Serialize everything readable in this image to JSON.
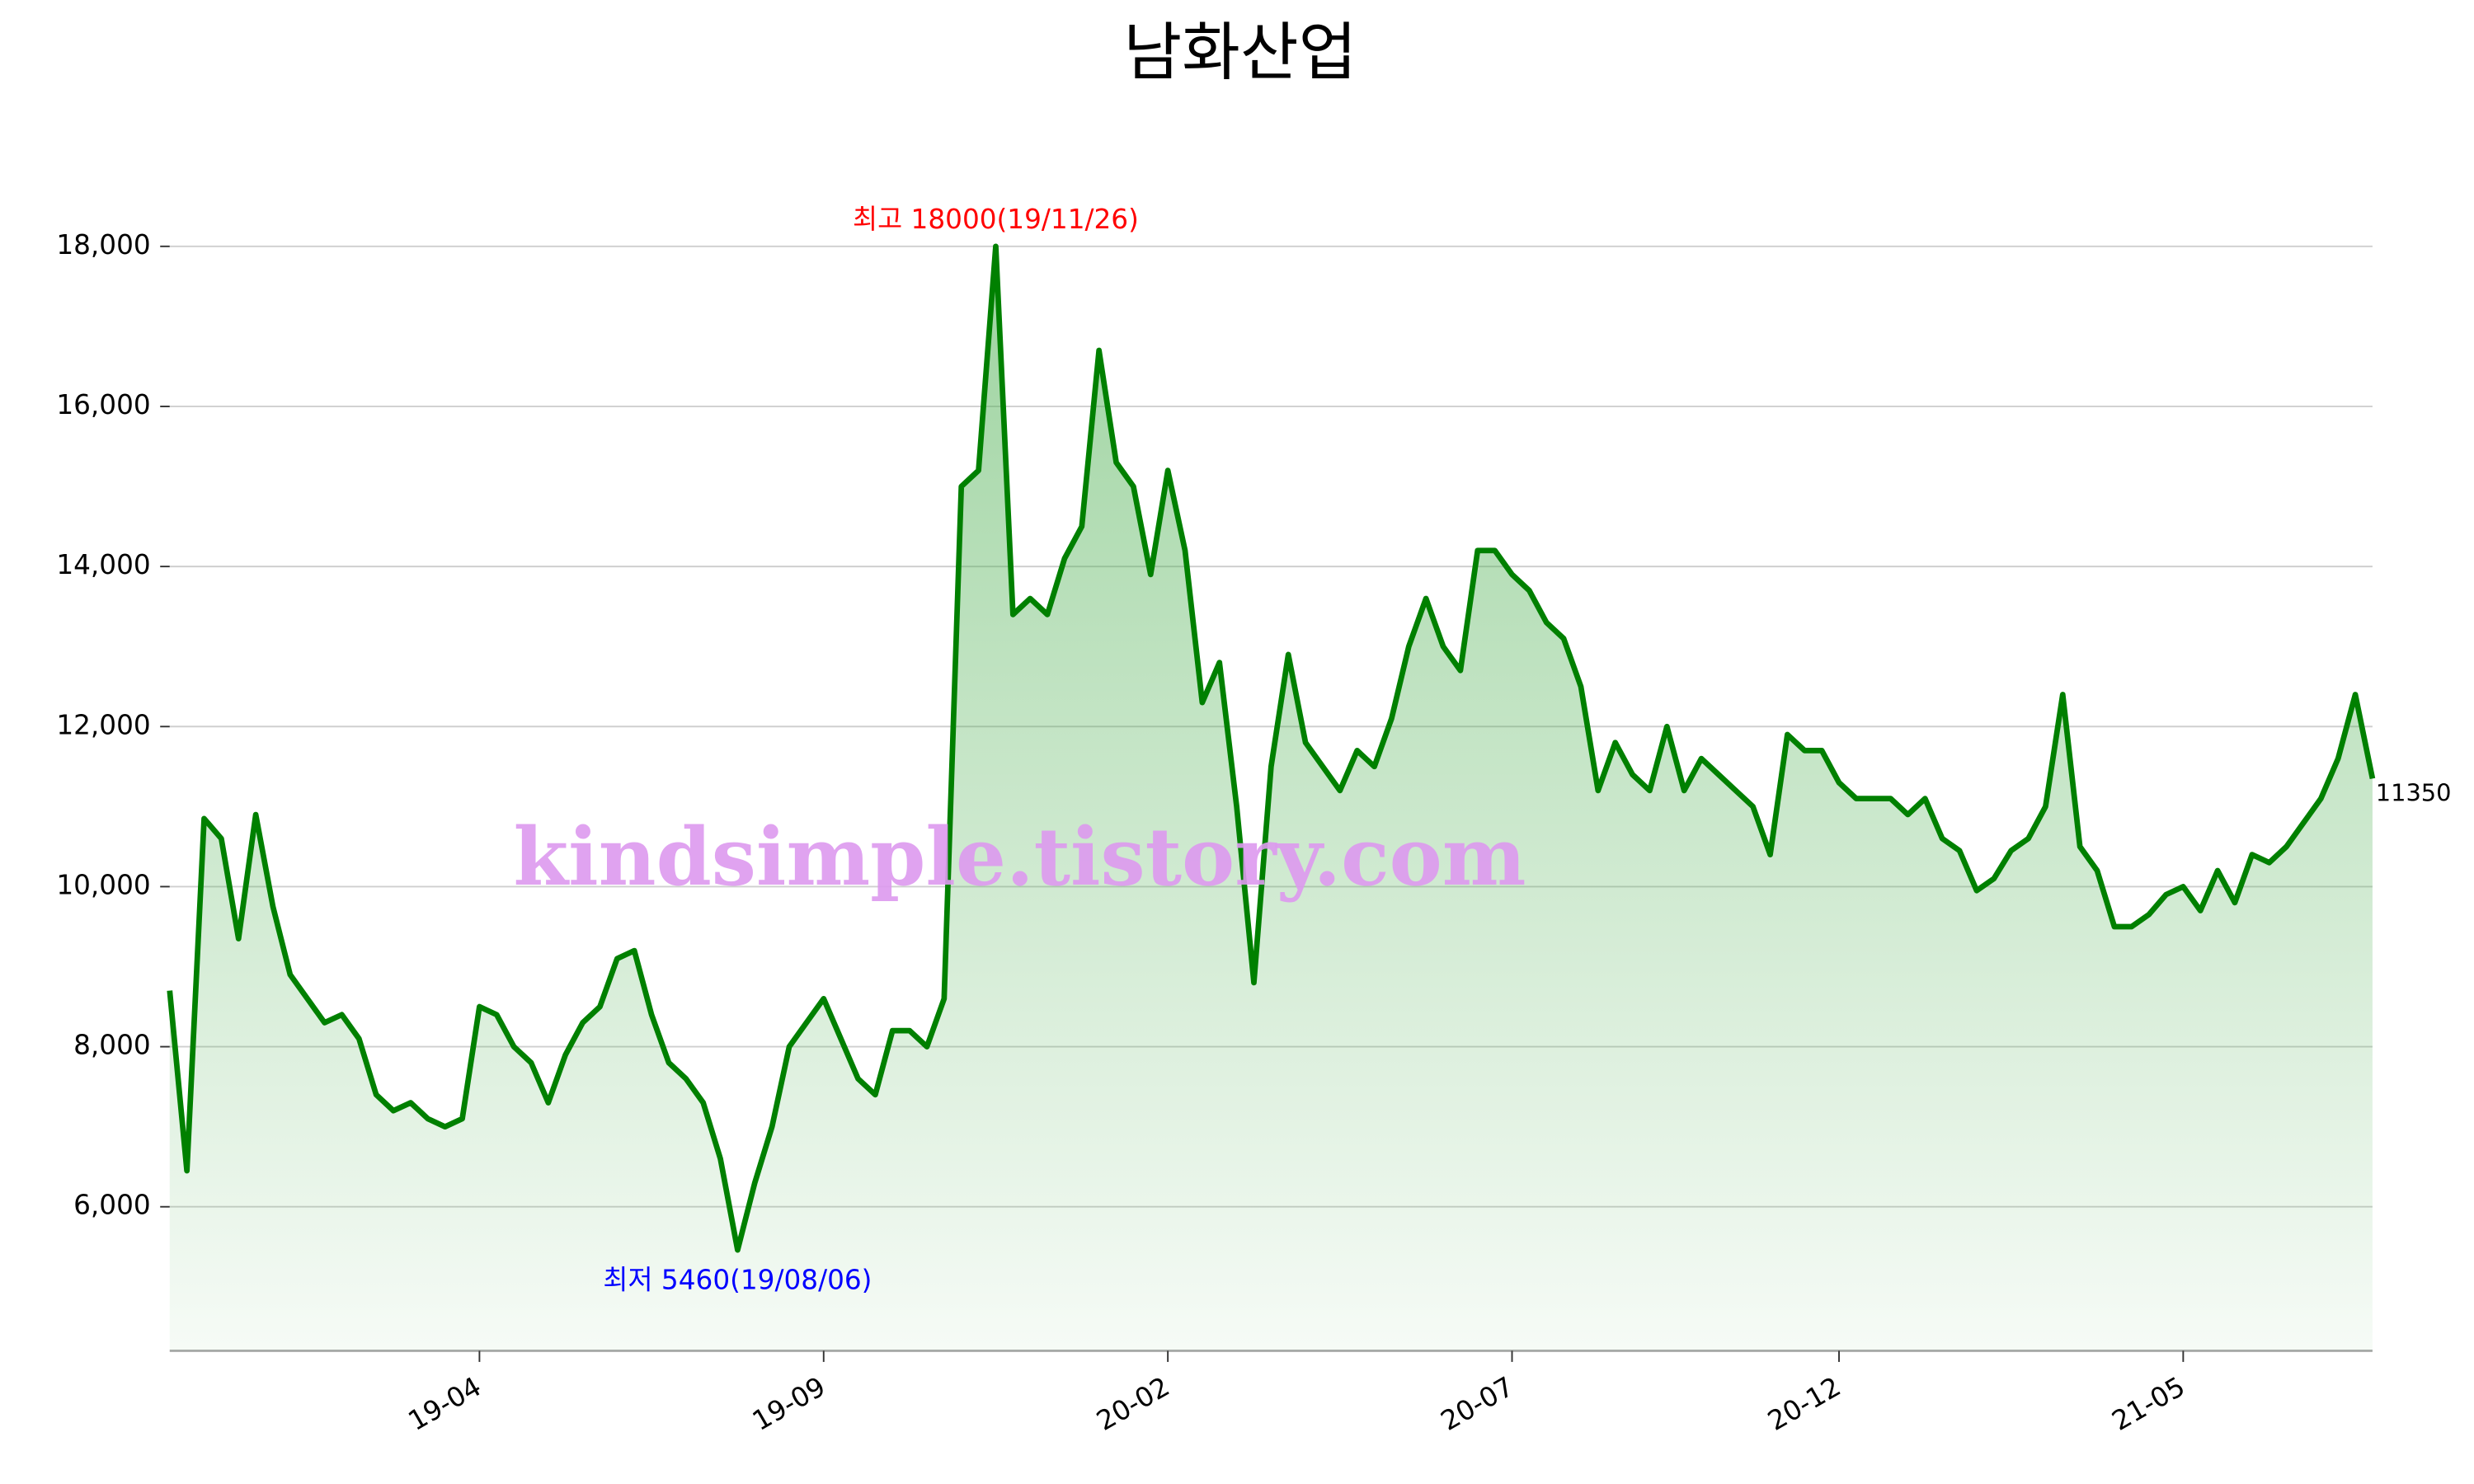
{
  "chart_data": {
    "type": "line",
    "title": "남화산업",
    "categories": [
      null,
      null,
      null,
      null,
      null,
      null,
      null,
      null,
      null,
      null,
      null,
      null,
      null,
      null,
      null,
      null,
      null,
      null,
      "19-04",
      null,
      null,
      null,
      null,
      null,
      null,
      null,
      null,
      null,
      null,
      null,
      null,
      null,
      null,
      null,
      null,
      null,
      null,
      null,
      "19-09",
      null,
      null,
      null,
      null,
      null,
      null,
      null,
      null,
      null,
      null,
      null,
      null,
      null,
      null,
      null,
      null,
      null,
      null,
      null,
      "20-02",
      null,
      null,
      null,
      null,
      null,
      null,
      null,
      null,
      null,
      null,
      null,
      null,
      null,
      null,
      null,
      null,
      null,
      null,
      null,
      "20-07",
      null,
      null,
      null,
      null,
      null,
      null,
      null,
      null,
      null,
      null,
      null,
      null,
      null,
      null,
      null,
      null,
      null,
      null,
      "20-12",
      null,
      null,
      null,
      null,
      null,
      null,
      null,
      null,
      null,
      null,
      null,
      null,
      null,
      null,
      null,
      null,
      null,
      null,
      null,
      "21-05",
      null,
      null,
      null,
      null,
      null,
      null,
      null,
      null,
      null,
      null,
      null
    ],
    "series": [
      {
        "name": null,
        "color": "#008000",
        "values": [
          8700,
          6450,
          10850,
          10600,
          9350,
          10900,
          9750,
          8900,
          8600,
          8300,
          8400,
          8100,
          7400,
          7200,
          7300,
          7100,
          7000,
          7100,
          8500,
          8400,
          8000,
          7800,
          7300,
          7900,
          8300,
          8500,
          9100,
          9200,
          8400,
          7800,
          7600,
          7300,
          6600,
          5460,
          6300,
          7000,
          8000,
          8300,
          8600,
          8100,
          7600,
          7400,
          8200,
          8200,
          8000,
          8600,
          15000,
          15200,
          18000,
          13400,
          13600,
          13400,
          14100,
          14500,
          16700,
          15300,
          15000,
          13900,
          15200,
          14200,
          12300,
          12800,
          11000,
          8800,
          11500,
          12900,
          11800,
          11500,
          11200,
          11700,
          11500,
          12100,
          13000,
          13600,
          13000,
          12700,
          14200,
          14200,
          13900,
          13700,
          13300,
          13100,
          12500,
          11200,
          11800,
          11400,
          11200,
          12000,
          11200,
          11600,
          11400,
          11200,
          11000,
          10400,
          11900,
          11700,
          11700,
          11300,
          11100,
          11100,
          11100,
          10900,
          11100,
          10600,
          10450,
          9950,
          10100,
          10450,
          10600,
          11000,
          12400,
          10500,
          10200,
          9500,
          9500,
          9650,
          9900,
          10000,
          9700,
          10200,
          9800,
          10400,
          10300,
          10500,
          10800,
          11100,
          11600,
          12400,
          11350
        ]
      }
    ],
    "ylim": [
      4200,
      18800
    ],
    "yticks": [
      {
        "value": 6000,
        "label": "6,000"
      },
      {
        "value": 8000,
        "label": "8,000"
      },
      {
        "value": 10000,
        "label": "10,000"
      },
      {
        "value": 12000,
        "label": "12,000"
      },
      {
        "value": 14000,
        "label": "14,000"
      },
      {
        "value": 16000,
        "label": "16,000"
      },
      {
        "value": 18000,
        "label": "18,000"
      }
    ],
    "grid": true,
    "annotations": {
      "high": "최고 18000(19/11/26)",
      "low": "최저 5460(19/08/06)"
    },
    "watermark": "kindsimple.tistory.com"
  }
}
